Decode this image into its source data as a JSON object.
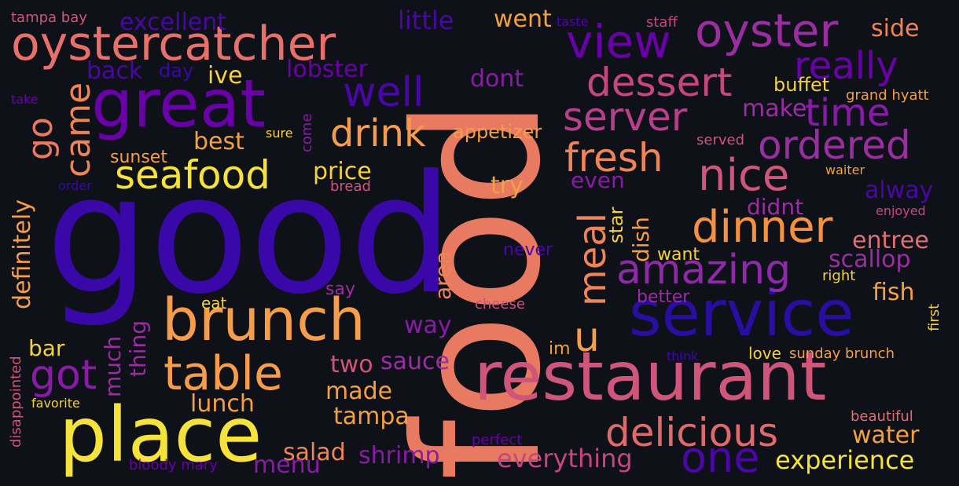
{
  "background": "#0e1118",
  "palette": {
    "dark_indigo": "#2a0da3",
    "indigo": "#4a06a6",
    "purple": "#6f00a8",
    "magenta": "#a0309a",
    "rose": "#d0557a",
    "coral": "#e77a60",
    "orange": "#f59d4a",
    "yellow": "#f5e23a"
  },
  "words": {
    "food": "food",
    "good": "good",
    "place": "place",
    "restaurant": "restaurant",
    "service": "service",
    "great": "great",
    "brunch": "brunch",
    "oystercatcher": "oystercatcher",
    "oyster": "oyster",
    "view": "view",
    "seafood": "seafood",
    "table": "table",
    "dessert": "dessert",
    "nice": "nice",
    "dinner": "dinner",
    "delicious": "delicious",
    "amazing": "amazing",
    "one": "one",
    "really": "really",
    "time": "time",
    "ordered": "ordered",
    "server": "server",
    "fresh": "fresh",
    "drink": "drink",
    "well": "well",
    "meal": "meal",
    "got": "got",
    "go": "go",
    "came": "came",
    "u": "u",
    "experience": "experience",
    "everything": "everything",
    "excellent": "excellent",
    "little": "little",
    "went": "went",
    "side": "side",
    "dont": "dont",
    "definitely": "definitely",
    "lunch": "lunch",
    "tampa": "tampa",
    "salad": "salad",
    "shrimp": "shrimp",
    "menu": "menu",
    "made": "made",
    "sauce": "sauce",
    "two": "two",
    "way": "way",
    "area": "area",
    "thing": "thing",
    "much": "much",
    "bar": "bar",
    "best": "best",
    "price": "price",
    "lobster": "lobster",
    "ive": "ive",
    "back": "back",
    "day": "day",
    "appetizer": "appetizer",
    "try": "try",
    "even": "even",
    "dish": "dish",
    "star": "star",
    "make": "make",
    "buffet": "buffet",
    "alway": "alway",
    "didnt": "didnt",
    "entree": "entree",
    "scallop": "scallop",
    "fish": "fish",
    "water": "water",
    "want": "want",
    "never": "never",
    "better": "better",
    "sunset": "sunset",
    "sure": "sure",
    "come": "come",
    "bread": "bread",
    "order": "order",
    "eat": "eat",
    "say": "say",
    "cheese": "cheese",
    "im": "im",
    "think": "think",
    "love": "love",
    "sunday_brunch": "sunday brunch",
    "first": "first",
    "beautiful": "beautiful",
    "perfect": "perfect",
    "bloody_mary": "bloody mary",
    "favorite": "favorite",
    "disappointed": "disappointed",
    "tampa_bay": "tampa bay",
    "take": "take",
    "staff": "staff",
    "taste": "taste",
    "grand_hyatt": "grand hyatt",
    "served": "served",
    "waiter": "waiter",
    "enjoyed": "enjoyed",
    "right": "right"
  }
}
